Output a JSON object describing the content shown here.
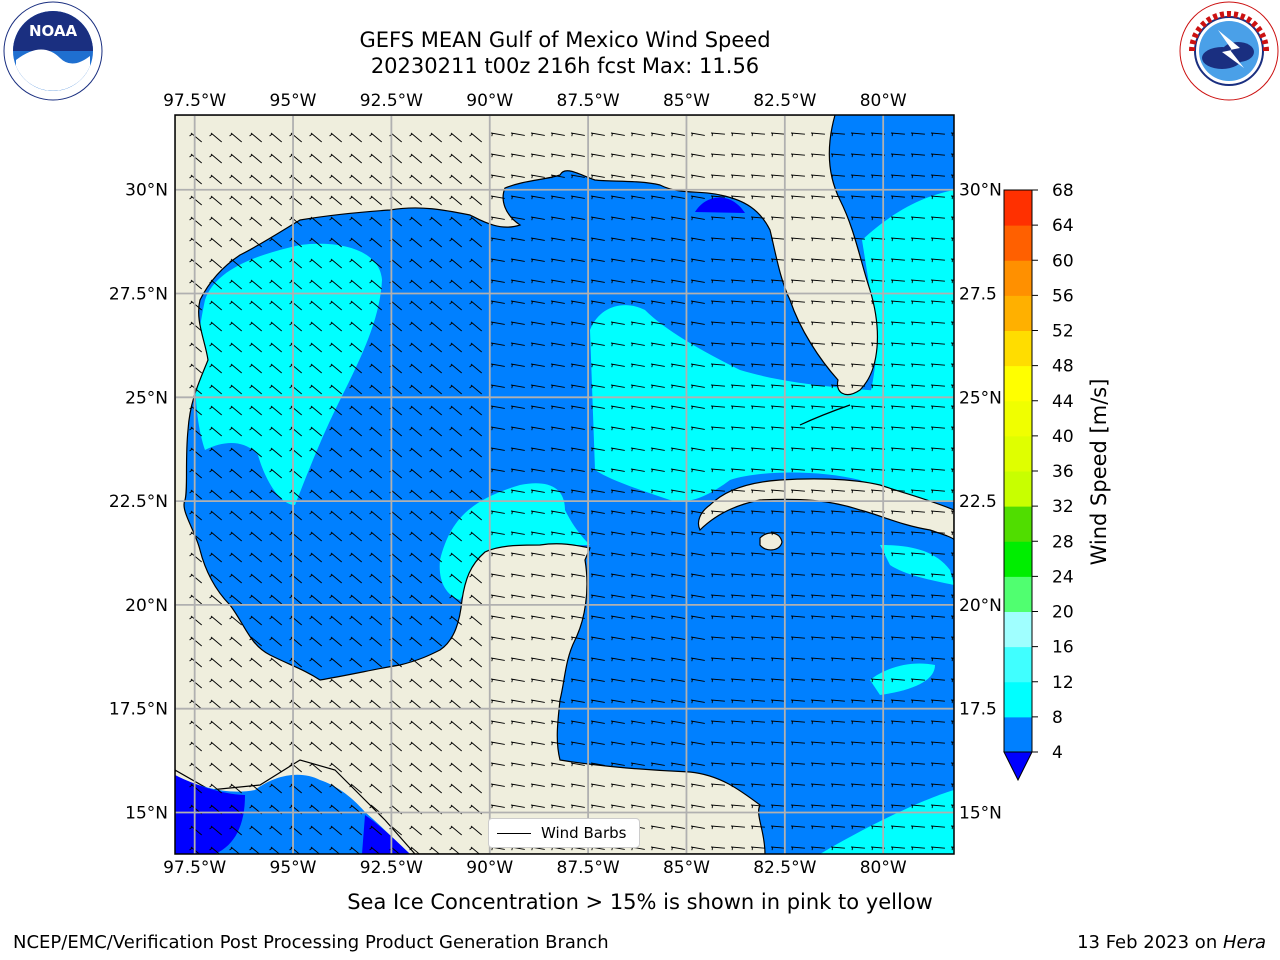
{
  "title": {
    "line1": "GEFS MEAN Gulf of Mexico Wind Speed",
    "line2": "20230211 t00z 216h fcst   Max: 11.56"
  },
  "logos": {
    "left": {
      "name": "noaa-logo",
      "text": "NOAA",
      "ring_text": "NATIONAL OCEANIC AND ATMOSPHERIC ADMINISTRATION · U.S. DEPARTMENT OF COMMERCE"
    },
    "right": {
      "name": "nws-logo",
      "ring_text": "NATIONAL WEATHER SERVICE"
    }
  },
  "map": {
    "lon_ticks": [
      "97.5°W",
      "95°W",
      "92.5°W",
      "90°W",
      "87.5°W",
      "85°W",
      "82.5°W",
      "80°W"
    ],
    "lat_ticks_left": [
      "30°N",
      "27.5°N",
      "25°N",
      "22.5°N",
      "20°N",
      "17.5°N",
      "15°N"
    ],
    "lat_ticks_right": [
      "30°N",
      "27.5",
      "25°N",
      "22.5",
      "20°N",
      "17.5",
      "15°N"
    ],
    "lon_range": [
      -98,
      -78.2
    ],
    "lat_range": [
      14,
      31.8
    ],
    "colors": {
      "land": "#efeedd",
      "wind_4_8": "#0080ff",
      "wind_8_12": "#00ffff",
      "wind_below_4": "#0000ff",
      "grid": "#b0b0b0"
    },
    "legend": {
      "label": "Wind Barbs"
    }
  },
  "colorbar": {
    "label": "Wind Speed [m/s]",
    "ticks": [
      "4",
      "8",
      "12",
      "16",
      "20",
      "24",
      "28",
      "32",
      "36",
      "40",
      "44",
      "48",
      "52",
      "56",
      "60",
      "64",
      "68"
    ],
    "colors": [
      "#0080ff",
      "#00ffff",
      "#40ffff",
      "#a0ffff",
      "#50ff70",
      "#00ee00",
      "#50dd00",
      "#c8ff00",
      "#dfff00",
      "#f0ff00",
      "#ffff00",
      "#ffdd00",
      "#ffb000",
      "#ff9000",
      "#ff6000",
      "#ff3000",
      "#ff0000"
    ],
    "extend_color": "#0000ff"
  },
  "caption": "Sea Ice Concentration > 15% is shown in pink to yellow",
  "footer": {
    "left": "NCEP/EMC/Verification Post Processing Product Generation Branch",
    "right_date": "13 Feb 2023 on ",
    "right_machine": "Hera"
  }
}
